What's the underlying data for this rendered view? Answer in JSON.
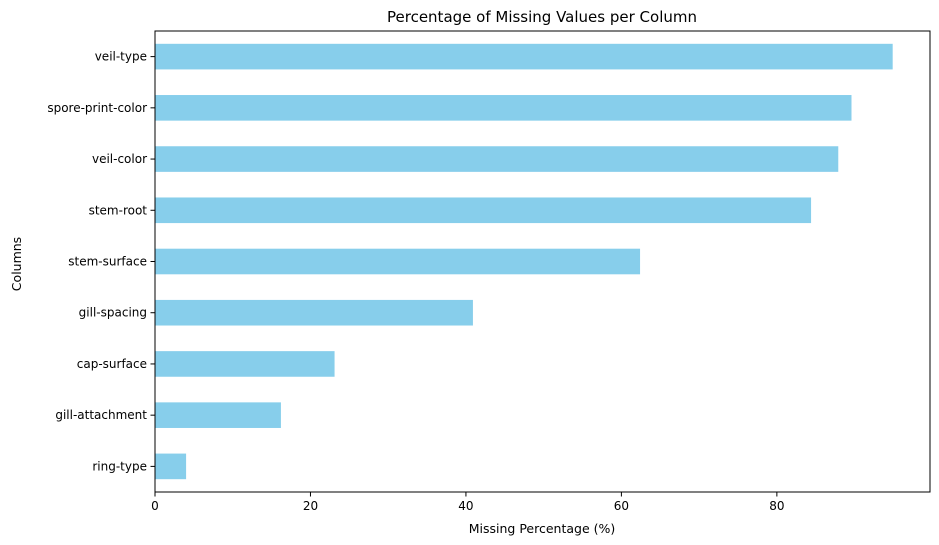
{
  "chart_data": {
    "type": "bar",
    "orientation": "horizontal",
    "title": "Percentage of Missing Values per Column",
    "xlabel": "Missing Percentage (%)",
    "ylabel": "Columns",
    "categories": [
      "veil-type",
      "spore-print-color",
      "veil-color",
      "stem-root",
      "stem-surface",
      "gill-spacing",
      "cap-surface",
      "gill-attachment",
      "ring-type"
    ],
    "values": [
      94.9,
      89.6,
      87.9,
      84.4,
      62.4,
      40.9,
      23.1,
      16.2,
      4.0
    ],
    "xlim": [
      0,
      99.7
    ],
    "xticks": [
      0,
      20,
      40,
      60,
      80
    ],
    "bar_color": "#87CEEB",
    "grid": false,
    "legend": "none"
  }
}
